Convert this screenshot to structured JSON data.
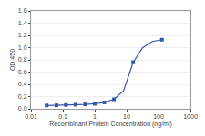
{
  "chart_data": {
    "type": "line",
    "xlabel": "Recombinant Protein Concentration (ng/ml)",
    "ylabel": "OD 450",
    "log": "x",
    "xlim": [
      0.01,
      1000
    ],
    "xticks": [
      0.01,
      0.1,
      1,
      10,
      100,
      1000
    ],
    "ylim": [
      0,
      1.6
    ],
    "yticks": [
      {
        "value": 0,
        "label": "0.0"
      },
      0.2,
      0.4,
      0.6,
      0.8,
      {
        "value": 1.0,
        "label": "1.0"
      },
      1.2,
      1.4,
      1.6
    ],
    "grid": "y",
    "series": [
      {
        "type": "line",
        "color": "#3355AA",
        "x": [
          0.031,
          0.063,
          0.125,
          0.25,
          0.5,
          1,
          2,
          4,
          8,
          16,
          32,
          64,
          128
        ],
        "values": [
          0.055,
          0.058,
          0.063,
          0.068,
          0.072,
          0.082,
          0.105,
          0.155,
          0.295,
          0.76,
          1.0,
          1.1,
          1.13
        ]
      },
      {
        "type": "scatter",
        "marker": "square",
        "color": "#3355AA",
        "x": [
          0.031,
          0.063,
          0.125,
          0.25,
          0.5,
          1,
          2,
          4,
          16,
          128
        ],
        "values": [
          0.055,
          0.058,
          0.063,
          0.068,
          0.072,
          0.082,
          0.105,
          0.155,
          0.76,
          1.13
        ]
      }
    ]
  }
}
